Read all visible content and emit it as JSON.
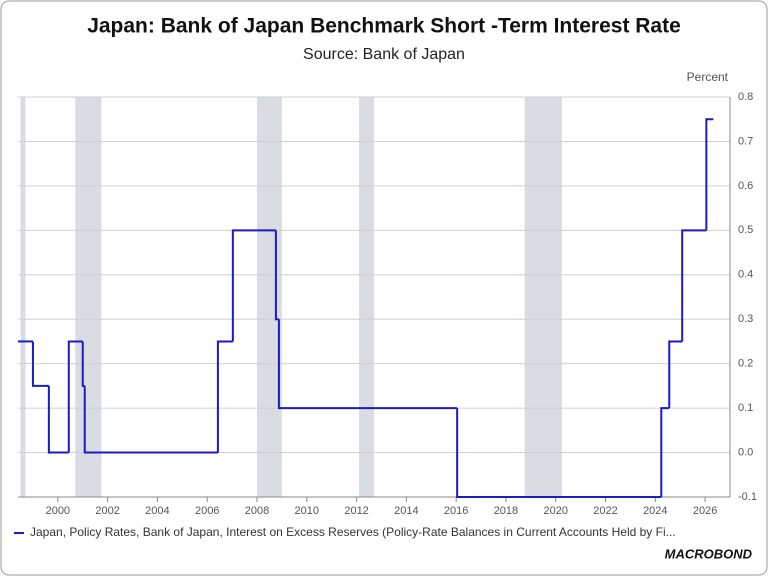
{
  "chart_data": {
    "type": "step-line",
    "title": "Japan: Bank of Japan Benchmark Short -Term Interest Rate",
    "subtitle": "Source: Bank of Japan",
    "y_axis_label": "Percent",
    "logo": "MACROBOND",
    "series": [
      {
        "name": "Japan, Policy Rates, Bank of Japan, Interest on Excess Reserves (Policy-Rate Balances in Current Accounts Held by Fi...",
        "color": "#1a1ac8",
        "x": [
          1998.4,
          1999.0,
          1999.64,
          2000.44,
          2001.0,
          2001.08,
          2006.43,
          2007.03,
          2008.76,
          2008.88,
          2016.04,
          2024.24,
          2024.56,
          2025.08,
          2026.05,
          2026.33
        ],
        "values": [
          0.25,
          0.15,
          0.0,
          0.25,
          0.15,
          0.0,
          0.25,
          0.5,
          0.3,
          0.1,
          -0.1,
          0.1,
          0.25,
          0.5,
          0.75,
          0.75
        ]
      }
    ],
    "shaded": [
      [
        1998.5,
        1998.7
      ],
      [
        2000.7,
        2001.75
      ],
      [
        2008.0,
        2009.0
      ],
      [
        2012.1,
        2012.7
      ],
      [
        2018.75,
        2020.25
      ]
    ],
    "shade_color": "#d9dce3",
    "xlim": [
      1998.4,
      2027.0
    ],
    "xticks": [
      2000,
      2002,
      2004,
      2006,
      2008,
      2010,
      2012,
      2014,
      2016,
      2018,
      2020,
      2022,
      2024,
      2026
    ],
    "ylim": [
      -0.1,
      0.8
    ],
    "yticks": [
      -0.1,
      {
        "value": 0,
        "label": "0.0"
      },
      0.1,
      0.2,
      0.3,
      0.4,
      0.5,
      0.6,
      0.7,
      0.8
    ],
    "grid": true
  }
}
